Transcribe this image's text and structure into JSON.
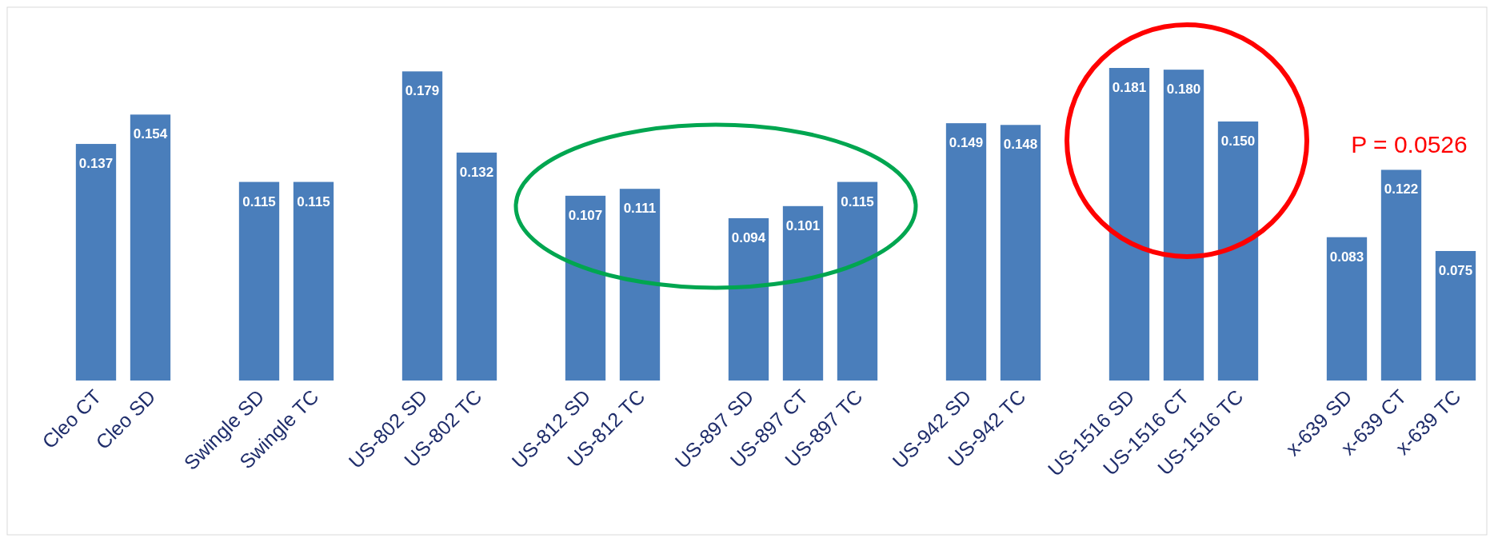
{
  "chart_data": {
    "type": "bar",
    "relative": false,
    "categories": [
      "Cleo CT",
      "Cleo SD",
      null,
      "Swingle SD",
      "Swingle TC",
      null,
      "US-802 SD",
      "US-802 TC",
      null,
      "US-812 SD",
      "US-812 TC",
      null,
      "US-897 SD",
      "US-897 CT",
      "US-897 TC",
      null,
      "US-942 SD",
      "US-942 TC",
      null,
      "US-1516 SD",
      "US-1516 CT",
      "US-1516 TC",
      null,
      "x-639 SD",
      "x-639 CT",
      "x-639 TC"
    ],
    "values": [
      0.137,
      0.154,
      null,
      0.115,
      0.115,
      null,
      0.179,
      0.132,
      null,
      0.107,
      0.111,
      null,
      0.094,
      0.101,
      0.115,
      null,
      0.149,
      0.148,
      null,
      0.181,
      0.18,
      0.15,
      null,
      0.083,
      0.122,
      0.075
    ],
    "value_labels": [
      "0.137",
      "0.154",
      null,
      "0.115",
      "0.115",
      null,
      "0.179",
      "0.132",
      null,
      "0.107",
      "0.111",
      null,
      "0.094",
      "0.101",
      "0.115",
      null,
      "0.149",
      "0.148",
      null,
      "0.181",
      "0.180",
      "0.150",
      null,
      "0.083",
      "0.122",
      "0.075"
    ],
    "color": "#4a7ebb",
    "annotations": [
      "P = 0.0526"
    ]
  }
}
